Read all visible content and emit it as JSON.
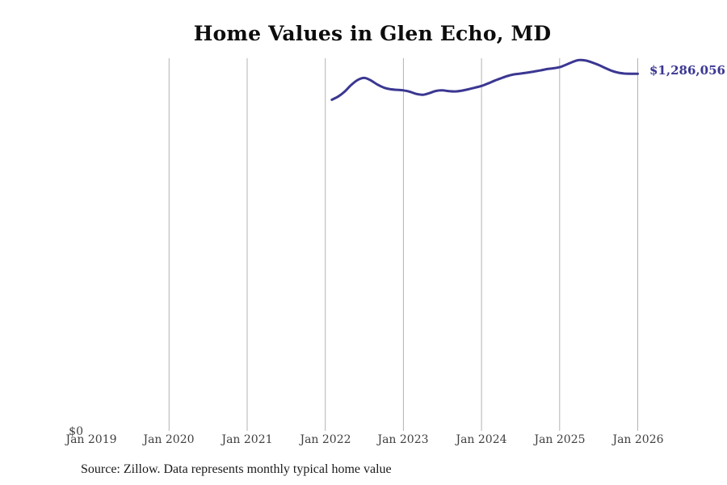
{
  "page": {
    "title": "Home Values in Glen Echo, MD",
    "source_note": "Source: Zillow. Data represents monthly typical home value"
  },
  "colors": {
    "line": "#3b3792",
    "annotation": "#3b3792",
    "gridline": "#b3b3b3",
    "axis_label": "#3f3f3f",
    "title": "#0d0d0d",
    "background": "#ffffff"
  },
  "chart_data": {
    "type": "line",
    "title": "Home Values in Glen Echo, MD",
    "unit": "USD",
    "grid": "vertical-only",
    "legend": "none",
    "y_axis": {
      "tick_labels": [
        "$0"
      ],
      "min": 0,
      "max_visible": 1342000
    },
    "x_axis": {
      "tick_labels": [
        "Jan 2019",
        "Jan 2020",
        "Jan 2021",
        "Jan 2022",
        "Jan 2023",
        "Jan 2024",
        "Jan 2025",
        "Jan 2026"
      ],
      "range": [
        "Jan 2019",
        "Jan 2026"
      ],
      "gridlines_at": [
        "Jan 2020",
        "Jan 2021",
        "Jan 2022",
        "Jan 2023",
        "Jan 2024",
        "Jan 2025",
        "Jan 2026"
      ]
    },
    "end_label": "$1,286,056",
    "end_value": 1286056,
    "series": [
      {
        "name": "Monthly typical home value",
        "x": [
          "Feb 2022",
          "Mar 2022",
          "Apr 2022",
          "May 2022",
          "Jun 2022",
          "Jul 2022",
          "Aug 2022",
          "Sep 2022",
          "Oct 2022",
          "Nov 2022",
          "Dec 2022",
          "Jan 2023",
          "Feb 2023",
          "Mar 2023",
          "Apr 2023",
          "May 2023",
          "Jun 2023",
          "Jul 2023",
          "Aug 2023",
          "Sep 2023",
          "Oct 2023",
          "Nov 2023",
          "Dec 2023",
          "Jan 2024",
          "Feb 2024",
          "Mar 2024",
          "Apr 2024",
          "May 2024",
          "Jun 2024",
          "Jul 2024",
          "Aug 2024",
          "Sep 2024",
          "Oct 2024",
          "Nov 2024",
          "Dec 2024",
          "Jan 2025",
          "Feb 2025",
          "Mar 2025",
          "Apr 2025",
          "May 2025",
          "Jun 2025",
          "Jul 2025",
          "Aug 2025",
          "Sep 2025",
          "Oct 2025",
          "Nov 2025",
          "Dec 2025",
          "Jan 2026"
        ],
        "values": [
          1192000,
          1204000,
          1222000,
          1246000,
          1264000,
          1271000,
          1262000,
          1247000,
          1236000,
          1230000,
          1228000,
          1226000,
          1221000,
          1213000,
          1210000,
          1216000,
          1224000,
          1226000,
          1223000,
          1222000,
          1225000,
          1230000,
          1236000,
          1242000,
          1251000,
          1261000,
          1270000,
          1278000,
          1284000,
          1287000,
          1290000,
          1294000,
          1298000,
          1303000,
          1306000,
          1310000,
          1319000,
          1329000,
          1336000,
          1334000,
          1327000,
          1318000,
          1307000,
          1297000,
          1290000,
          1287000,
          1286200,
          1286056
        ]
      }
    ]
  }
}
